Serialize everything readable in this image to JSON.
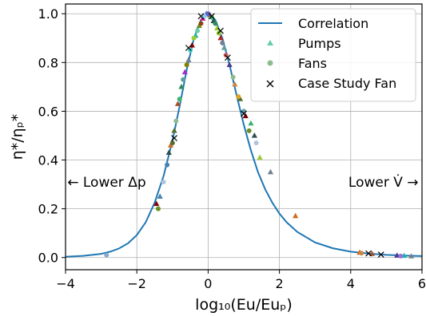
{
  "chart_data": {
    "type": "scatter",
    "xlabel": "log₁₀(Eu/Euₚ)",
    "ylabel": "η*/ηₚ*",
    "xlim": [
      -4,
      6
    ],
    "ylim": [
      -0.05,
      1.04
    ],
    "xticks": [
      -4,
      -2,
      0,
      2,
      4,
      6
    ],
    "xtick_labels": [
      "−4",
      "−2",
      "0",
      "2",
      "4",
      "6"
    ],
    "yticks": [
      0.0,
      0.2,
      0.4,
      0.6,
      0.8,
      1.0
    ],
    "ytick_labels": [
      "0.0",
      "0.2",
      "0.4",
      "0.6",
      "0.8",
      "1.0"
    ],
    "grid": true,
    "legend": {
      "placement": "top-right",
      "entries": [
        "Correlation",
        "Pumps",
        "Fans",
        "Case Study Fan"
      ]
    },
    "annotations": [
      {
        "text": "← Lower Δp",
        "x": -3.95,
        "y": 0.31
      },
      {
        "text": "Lower V̇ →",
        "x": 5.9,
        "y": 0.31
      }
    ],
    "correlation": {
      "name": "Correlation",
      "color": "#1f77b4",
      "x": [
        -4.0,
        -3.5,
        -3.0,
        -2.75,
        -2.5,
        -2.25,
        -2.0,
        -1.75,
        -1.5,
        -1.25,
        -1.0,
        -0.8,
        -0.6,
        -0.4,
        -0.2,
        0.0,
        0.2,
        0.4,
        0.6,
        0.8,
        1.0,
        1.2,
        1.4,
        1.6,
        1.8,
        2.0,
        2.2,
        2.5,
        3.0,
        3.5,
        4.0,
        4.5,
        5.0,
        5.5,
        6.0
      ],
      "y": [
        0.003,
        0.007,
        0.015,
        0.024,
        0.037,
        0.058,
        0.092,
        0.145,
        0.225,
        0.335,
        0.48,
        0.62,
        0.77,
        0.9,
        0.975,
        1.0,
        0.975,
        0.9,
        0.79,
        0.665,
        0.545,
        0.44,
        0.35,
        0.28,
        0.225,
        0.18,
        0.145,
        0.105,
        0.062,
        0.038,
        0.024,
        0.016,
        0.011,
        0.008,
        0.006
      ]
    },
    "series": [
      {
        "name": "Pumps",
        "marker": "triangle",
        "points": [
          {
            "x": -1.45,
            "y": 0.22,
            "color": "#8b0000"
          },
          {
            "x": -1.35,
            "y": 0.25,
            "color": "#4682b4"
          },
          {
            "x": -1.1,
            "y": 0.43,
            "color": "#2f4f4f"
          },
          {
            "x": -1.05,
            "y": 0.46,
            "color": "#d2691e"
          },
          {
            "x": -0.95,
            "y": 0.52,
            "color": "#556b2f"
          },
          {
            "x": -0.85,
            "y": 0.63,
            "color": "#a0522d"
          },
          {
            "x": -0.75,
            "y": 0.7,
            "color": "#2e8b57"
          },
          {
            "x": -0.65,
            "y": 0.76,
            "color": "#9932cc"
          },
          {
            "x": -0.55,
            "y": 0.81,
            "color": "#708090"
          },
          {
            "x": -0.45,
            "y": 0.87,
            "color": "#8b0000"
          },
          {
            "x": -0.35,
            "y": 0.91,
            "color": "#20b2aa"
          },
          {
            "x": -0.25,
            "y": 0.95,
            "color": "#6b8e23"
          },
          {
            "x": -0.15,
            "y": 0.98,
            "color": "#c71585"
          },
          {
            "x": -0.05,
            "y": 1.0,
            "color": "#4682b4"
          },
          {
            "x": 0.05,
            "y": 0.995,
            "color": "#8b4513"
          },
          {
            "x": 0.15,
            "y": 0.97,
            "color": "#2f4f4f"
          },
          {
            "x": 0.25,
            "y": 0.94,
            "color": "#9acd32"
          },
          {
            "x": 0.35,
            "y": 0.9,
            "color": "#b22222"
          },
          {
            "x": 0.45,
            "y": 0.86,
            "color": "#5f9ea0"
          },
          {
            "x": 0.6,
            "y": 0.79,
            "color": "#483d8b"
          },
          {
            "x": 0.75,
            "y": 0.71,
            "color": "#cd853f"
          },
          {
            "x": 0.9,
            "y": 0.65,
            "color": "#556b2f"
          },
          {
            "x": 1.05,
            "y": 0.58,
            "color": "#8b0000"
          },
          {
            "x": 1.2,
            "y": 0.55,
            "color": "#3cb371"
          },
          {
            "x": 1.3,
            "y": 0.5,
            "color": "#2f4f4f"
          },
          {
            "x": 1.45,
            "y": 0.41,
            "color": "#9acd32"
          },
          {
            "x": 1.75,
            "y": 0.35,
            "color": "#708090"
          },
          {
            "x": 2.45,
            "y": 0.17,
            "color": "#d2691e"
          },
          {
            "x": 4.25,
            "y": 0.02,
            "color": "#d2691e"
          },
          {
            "x": 4.6,
            "y": 0.015,
            "color": "#a0522d"
          },
          {
            "x": 5.3,
            "y": 0.008,
            "color": "#483d8b"
          },
          {
            "x": 5.7,
            "y": 0.005,
            "color": "#708090"
          },
          {
            "x": 5.5,
            "y": 0.007,
            "color": "#20b2aa"
          }
        ]
      },
      {
        "name": "Fans",
        "marker": "circle",
        "points": [
          {
            "x": -2.85,
            "y": 0.01,
            "color": "#87a8c8"
          },
          {
            "x": -1.4,
            "y": 0.2,
            "color": "#6b8e23"
          },
          {
            "x": -1.25,
            "y": 0.31,
            "color": "#b0c4de"
          },
          {
            "x": -1.15,
            "y": 0.38,
            "color": "#4682b4"
          },
          {
            "x": -1.0,
            "y": 0.47,
            "color": "#556b2f"
          },
          {
            "x": -0.9,
            "y": 0.56,
            "color": "#8fbc8f"
          },
          {
            "x": -0.8,
            "y": 0.65,
            "color": "#3cb371"
          },
          {
            "x": -0.7,
            "y": 0.73,
            "color": "#5f9ea0"
          },
          {
            "x": -0.6,
            "y": 0.79,
            "color": "#808000"
          },
          {
            "x": -0.5,
            "y": 0.85,
            "color": "#48d1cc"
          },
          {
            "x": -0.4,
            "y": 0.9,
            "color": "#9acd32"
          },
          {
            "x": -0.3,
            "y": 0.93,
            "color": "#66cdaa"
          },
          {
            "x": -0.2,
            "y": 0.96,
            "color": "#8b4513"
          },
          {
            "x": -0.1,
            "y": 0.99,
            "color": "#87cefa"
          },
          {
            "x": 0.0,
            "y": 1.0,
            "color": "#6a5acd"
          },
          {
            "x": 0.1,
            "y": 0.985,
            "color": "#3cb371"
          },
          {
            "x": 0.2,
            "y": 0.96,
            "color": "#2e8b57"
          },
          {
            "x": 0.3,
            "y": 0.92,
            "color": "#9acd32"
          },
          {
            "x": 0.4,
            "y": 0.88,
            "color": "#708090"
          },
          {
            "x": 0.5,
            "y": 0.83,
            "color": "#cd5c5c"
          },
          {
            "x": 0.7,
            "y": 0.74,
            "color": "#8fbc8f"
          },
          {
            "x": 0.85,
            "y": 0.66,
            "color": "#daa520"
          },
          {
            "x": 1.0,
            "y": 0.6,
            "color": "#5f9ea0"
          },
          {
            "x": 1.15,
            "y": 0.52,
            "color": "#6b8e23"
          },
          {
            "x": 1.35,
            "y": 0.47,
            "color": "#b0c4de"
          },
          {
            "x": 4.3,
            "y": 0.018,
            "color": "#cd853f"
          },
          {
            "x": 5.4,
            "y": 0.006,
            "color": "#9370db"
          }
        ]
      },
      {
        "name": "Case Study Fan",
        "marker": "x",
        "points": [
          {
            "x": -0.95,
            "y": 0.49,
            "color": "#000000"
          },
          {
            "x": -0.55,
            "y": 0.86,
            "color": "#000000"
          },
          {
            "x": -0.2,
            "y": 0.99,
            "color": "#000000"
          },
          {
            "x": 0.1,
            "y": 0.99,
            "color": "#000000"
          },
          {
            "x": 0.35,
            "y": 0.93,
            "color": "#000000"
          },
          {
            "x": 0.55,
            "y": 0.82,
            "color": "#000000"
          },
          {
            "x": 1.0,
            "y": 0.59,
            "color": "#000000"
          },
          {
            "x": 4.5,
            "y": 0.017,
            "color": "#000000"
          },
          {
            "x": 4.85,
            "y": 0.012,
            "color": "#000000"
          }
        ]
      }
    ]
  }
}
